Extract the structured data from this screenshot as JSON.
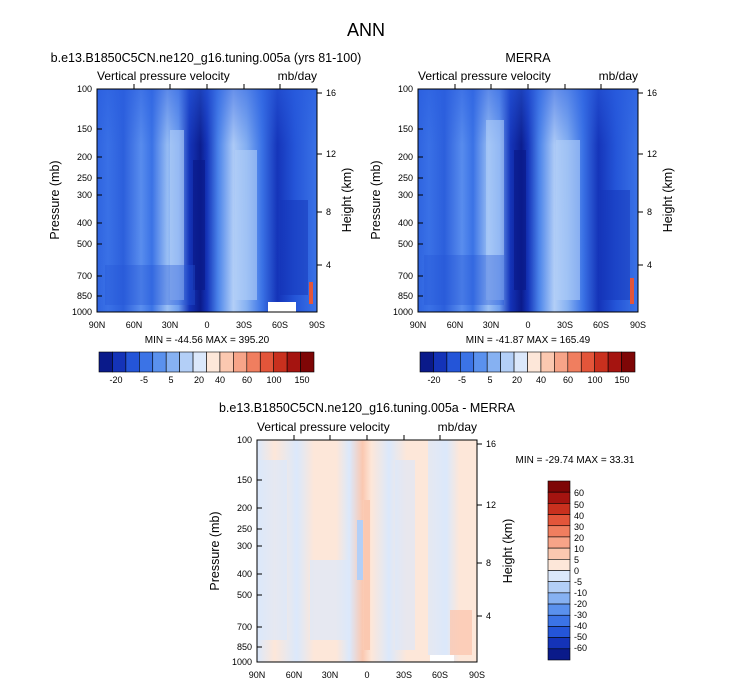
{
  "figure": {
    "title": "ANN"
  },
  "colors": {
    "top_scale": [
      "#0a1a8a",
      "#1433b8",
      "#2455d8",
      "#3b73e6",
      "#5a91ee",
      "#86b1f2",
      "#b3cff7",
      "#dbe8fb",
      "#fde7d9",
      "#fbc8b0",
      "#f7a488",
      "#f07e5f",
      "#e3553a",
      "#c9301e",
      "#a51410",
      "#7e0606"
    ],
    "diff_scale": [
      "#0a1a8a",
      "#1433b8",
      "#2455d8",
      "#3b73e6",
      "#5a91ee",
      "#86b1f2",
      "#b3cff7",
      "#dbe8fb",
      "#fde7d9",
      "#fbc8b0",
      "#f7a488",
      "#f07e5f",
      "#e3553a",
      "#c9301e",
      "#a51410",
      "#7e0606"
    ]
  },
  "chart_data": [
    {
      "type": "heatmap",
      "title": "b.e13.B1850C5CN.ne120_g16.tuning.005a (yrs 81-100)",
      "left_label": "Vertical pressure velocity",
      "right_label": "mb/day",
      "xlabel": "",
      "ylabel": "Pressure (mb)",
      "y2label": "Height (km)",
      "xticks": [
        "90N",
        "60N",
        "30N",
        "0",
        "30S",
        "60S",
        "90S"
      ],
      "yticks": [
        "100",
        "150",
        "200",
        "250",
        "300",
        "400",
        "500",
        "700",
        "850",
        "1000"
      ],
      "y2ticks": [
        "16",
        "12",
        "8",
        "4"
      ],
      "stats": "MIN = -44.56  MAX = 395.20",
      "colorbar_labels": [
        "-20",
        "-5",
        "5",
        "20",
        "40",
        "60",
        "100",
        "150"
      ]
    },
    {
      "type": "heatmap",
      "title": "MERRA",
      "left_label": "Vertical pressure velocity",
      "right_label": "mb/day",
      "xlabel": "",
      "ylabel": "Pressure (mb)",
      "y2label": "Height (km)",
      "xticks": [
        "90N",
        "60N",
        "30N",
        "0",
        "30S",
        "60S",
        "90S"
      ],
      "yticks": [
        "100",
        "150",
        "200",
        "250",
        "300",
        "400",
        "500",
        "700",
        "850",
        "1000"
      ],
      "y2ticks": [
        "16",
        "12",
        "8",
        "4"
      ],
      "stats": "MIN = -41.87  MAX = 165.49",
      "colorbar_labels": [
        "-20",
        "-5",
        "5",
        "20",
        "40",
        "60",
        "100",
        "150"
      ]
    },
    {
      "type": "heatmap",
      "title": "b.e13.B1850C5CN.ne120_g16.tuning.005a - MERRA",
      "left_label": "Vertical pressure velocity",
      "right_label": "mb/day",
      "xlabel": "",
      "ylabel": "Pressure (mb)",
      "y2label": "Height (km)",
      "xticks": [
        "90N",
        "60N",
        "30N",
        "0",
        "30S",
        "60S",
        "90S"
      ],
      "yticks": [
        "100",
        "150",
        "200",
        "250",
        "300",
        "400",
        "500",
        "700",
        "850",
        "1000"
      ],
      "y2ticks": [
        "16",
        "12",
        "8",
        "4"
      ],
      "stats": "MIN = -29.74  MAX =  33.31",
      "colorbar_labels": [
        "60",
        "50",
        "40",
        "30",
        "20",
        "10",
        "5",
        "0",
        "-5",
        "-10",
        "-20",
        "-30",
        "-40",
        "-50",
        "-60"
      ]
    }
  ]
}
